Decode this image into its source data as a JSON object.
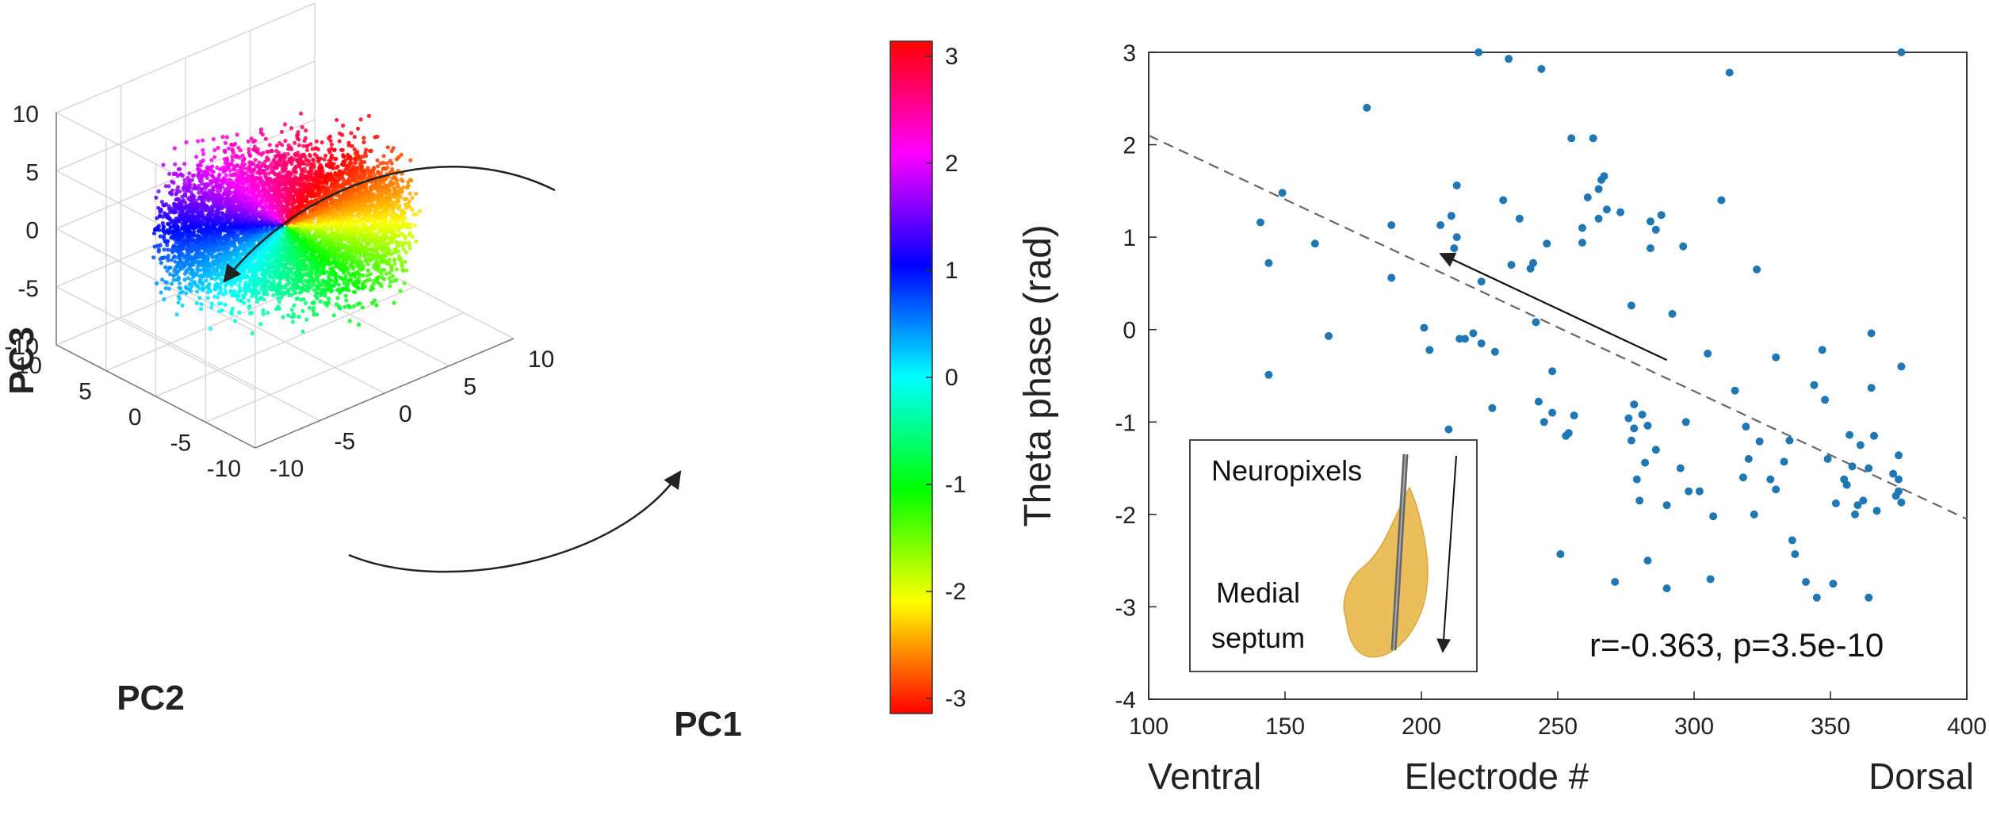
{
  "chart_data": [
    {
      "type": "scatter",
      "subtype": "3d-point-cloud",
      "xlabel": "PC1",
      "ylabel": "PC2",
      "zlabel": "PC3",
      "xlim": [
        -10,
        10
      ],
      "ylim": [
        -10,
        10
      ],
      "zlim": [
        -10,
        10
      ],
      "x_ticks": [
        "-10",
        "-5",
        "0",
        "5",
        "10"
      ],
      "y_ticks": [
        "-10",
        "-5",
        "0",
        "5",
        "10"
      ],
      "z_ticks": [
        "-10",
        "-5",
        "0",
        "5",
        "10"
      ],
      "grid": true,
      "color_by": "theta phase (rad)",
      "cloud": {
        "center": [
          0,
          0,
          0
        ],
        "radius_x": 8,
        "radius_y": 8,
        "radius_z": 3.5
      },
      "annotations": [
        "curved arrow pointing counter-clockwise at the top",
        "curved arrow pointing clockwise at the bottom"
      ],
      "colorbar": {
        "range": [
          -3.14,
          3.14
        ],
        "ticks": [
          "3",
          "2",
          "1",
          "0",
          "-1",
          "-2",
          "-3"
        ],
        "colormap": "hsv",
        "colors": [
          "#ff0000",
          "#ff00ff",
          "#0000ff",
          "#00ffff",
          "#00ff00",
          "#ffff00",
          "#ff0000"
        ]
      }
    },
    {
      "type": "scatter",
      "ylabel": "Theta phase (rad)",
      "xlabel": "Electrode #",
      "xlabel_left": "Ventral",
      "xlabel_right": "Dorsal",
      "xlim": [
        100,
        400
      ],
      "ylim": [
        -4,
        3
      ],
      "x_ticks": [
        "100",
        "150",
        "200",
        "250",
        "300",
        "350",
        "400"
      ],
      "y_ticks": [
        "3",
        "2",
        "1",
        "0",
        "-1",
        "-2",
        "-3",
        "-4"
      ],
      "grid": false,
      "point_color": "#1f77b4",
      "annotation": "r=-0.363, p=3.5e-10",
      "fit_line": {
        "x": [
          100,
          400
        ],
        "y": [
          2.1,
          -2.05
        ],
        "style": "dashed",
        "color": "#666666"
      },
      "arrow": {
        "from": [
          290,
          -0.33
        ],
        "to": [
          207,
          0.82
        ]
      },
      "inset": {
        "label1": "Neuropixels",
        "label2_line1": "Medial",
        "label2_line2": "septum"
      },
      "points": [
        [
          141,
          1.16
        ],
        [
          144,
          0.72
        ],
        [
          144,
          -0.49
        ],
        [
          149,
          1.48
        ],
        [
          161,
          0.93
        ],
        [
          166,
          -0.07
        ],
        [
          180,
          2.4
        ],
        [
          189,
          1.13
        ],
        [
          189,
          0.56
        ],
        [
          201,
          0.02
        ],
        [
          203,
          -0.22
        ],
        [
          207,
          1.13
        ],
        [
          211,
          1.23
        ],
        [
          213,
          1.0
        ],
        [
          213,
          1.56
        ],
        [
          210,
          -1.08
        ],
        [
          212,
          0.88
        ],
        [
          214,
          -0.1
        ],
        [
          216,
          -0.1
        ],
        [
          219,
          -0.04
        ],
        [
          221,
          3.0
        ],
        [
          222,
          0.52
        ],
        [
          222,
          -0.15
        ],
        [
          226,
          -0.85
        ],
        [
          227,
          -0.24
        ],
        [
          230,
          1.4
        ],
        [
          232,
          2.93
        ],
        [
          233,
          0.7
        ],
        [
          236,
          1.2
        ],
        [
          240,
          0.66
        ],
        [
          241,
          0.72
        ],
        [
          244,
          2.82
        ],
        [
          242,
          0.08
        ],
        [
          246,
          0.93
        ],
        [
          248,
          -0.45
        ],
        [
          243,
          -0.78
        ],
        [
          245,
          -1.0
        ],
        [
          248,
          -0.9
        ],
        [
          251,
          -2.43
        ],
        [
          253,
          -1.15
        ],
        [
          254,
          -1.12
        ],
        [
          255,
          2.07
        ],
        [
          256,
          -0.93
        ],
        [
          259,
          1.1
        ],
        [
          259,
          0.94
        ],
        [
          261,
          1.43
        ],
        [
          263,
          2.07
        ],
        [
          265,
          1.2
        ],
        [
          265,
          1.52
        ],
        [
          266,
          1.62
        ],
        [
          267,
          1.66
        ],
        [
          268,
          1.3
        ],
        [
          271,
          -2.73
        ],
        [
          273,
          1.27
        ],
        [
          276,
          -0.96
        ],
        [
          277,
          -1.2
        ],
        [
          278,
          -1.07
        ],
        [
          277,
          0.26
        ],
        [
          278,
          -0.81
        ],
        [
          279,
          -1.62
        ],
        [
          280,
          -1.85
        ],
        [
          281,
          -0.92
        ],
        [
          282,
          -1.44
        ],
        [
          283,
          -1.04
        ],
        [
          283,
          -2.5
        ],
        [
          284,
          1.17
        ],
        [
          284,
          0.88
        ],
        [
          286,
          1.08
        ],
        [
          286,
          -1.3
        ],
        [
          288,
          1.24
        ],
        [
          290,
          -1.9
        ],
        [
          290,
          -2.8
        ],
        [
          292,
          0.17
        ],
        [
          295,
          -1.5
        ],
        [
          296,
          0.9
        ],
        [
          298,
          -1.75
        ],
        [
          297,
          -1.0
        ],
        [
          302,
          -1.75
        ],
        [
          305,
          -0.26
        ],
        [
          306,
          -2.7
        ],
        [
          307,
          -2.02
        ],
        [
          310,
          1.4
        ],
        [
          313,
          2.78
        ],
        [
          315,
          -0.66
        ],
        [
          318,
          -1.6
        ],
        [
          319,
          -1.05
        ],
        [
          320,
          -1.4
        ],
        [
          322,
          -2.0
        ],
        [
          323,
          0.65
        ],
        [
          324,
          -1.21
        ],
        [
          328,
          -1.62
        ],
        [
          330,
          -1.73
        ],
        [
          330,
          -0.3
        ],
        [
          333,
          -1.43
        ],
        [
          335,
          -1.2
        ],
        [
          336,
          -2.28
        ],
        [
          337,
          -2.43
        ],
        [
          341,
          -2.73
        ],
        [
          344,
          -0.6
        ],
        [
          345,
          -2.9
        ],
        [
          347,
          -0.22
        ],
        [
          348,
          -0.76
        ],
        [
          349,
          -1.4
        ],
        [
          351,
          -2.75
        ],
        [
          352,
          -1.88
        ],
        [
          355,
          -1.62
        ],
        [
          356,
          -1.68
        ],
        [
          357,
          -1.14
        ],
        [
          358,
          -1.48
        ],
        [
          359,
          -2.0
        ],
        [
          360,
          -1.9
        ],
        [
          361,
          -1.25
        ],
        [
          362,
          -1.85
        ],
        [
          364,
          -2.9
        ],
        [
          364,
          -1.5
        ],
        [
          365,
          -0.04
        ],
        [
          365,
          -0.63
        ],
        [
          366,
          -1.15
        ],
        [
          367,
          -1.96
        ],
        [
          373,
          -1.56
        ],
        [
          374,
          -1.8
        ],
        [
          375,
          -1.62
        ],
        [
          375,
          -1.36
        ],
        [
          375,
          -1.75
        ],
        [
          376,
          3.0
        ],
        [
          376,
          -0.4
        ],
        [
          376,
          -1.87
        ]
      ]
    }
  ]
}
